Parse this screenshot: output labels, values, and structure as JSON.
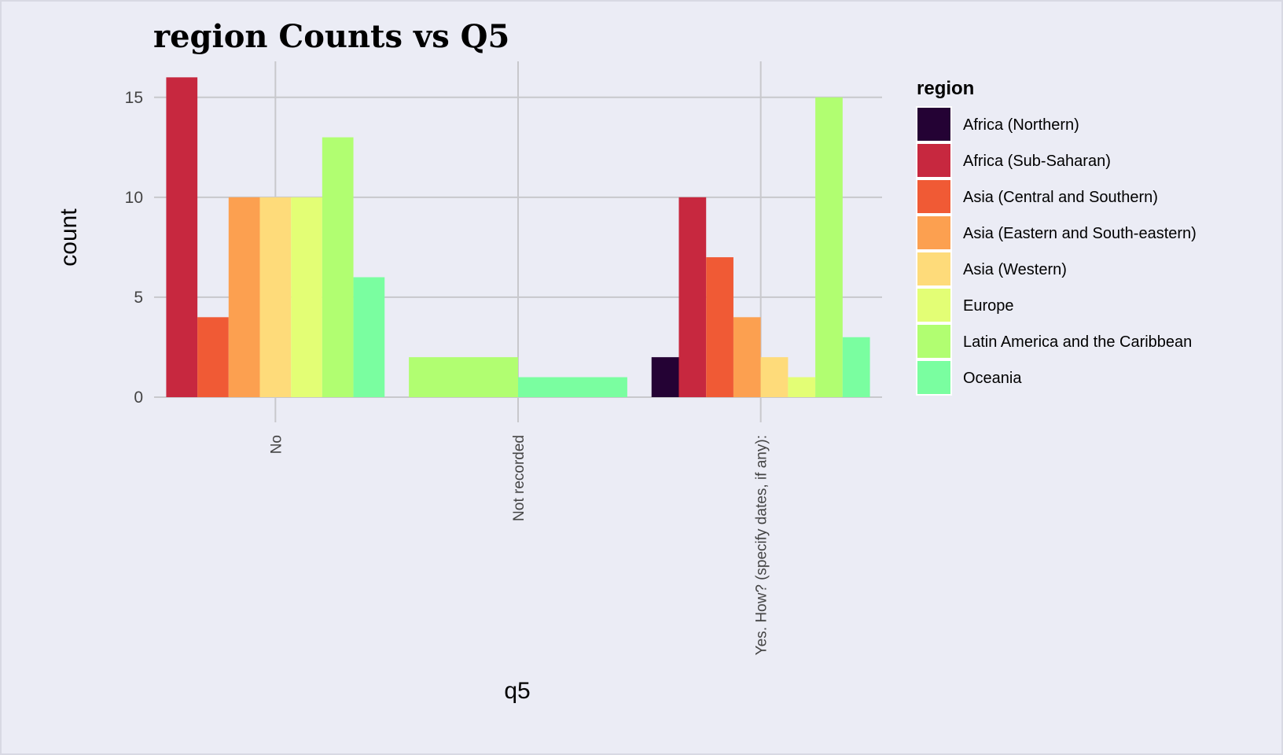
{
  "chart_data": {
    "type": "bar",
    "title": "region Counts vs Q5",
    "xlabel": "q5",
    "ylabel": "count",
    "ylim": [
      0,
      16.8
    ],
    "yticks": [
      0,
      5,
      10,
      15
    ],
    "grid": true,
    "legend": {
      "title": "region",
      "placement": "right"
    },
    "categories": [
      "No",
      "Not recorded",
      "Yes. How? (specify dates, if any):"
    ],
    "series": [
      {
        "name": "Africa (Northern)",
        "color": "#240234",
        "values": [
          null,
          null,
          2
        ]
      },
      {
        "name": "Africa (Sub-Saharan)",
        "color": "#C7283F",
        "values": [
          16,
          null,
          10
        ]
      },
      {
        "name": "Asia (Central and Southern)",
        "color": "#F05A35",
        "values": [
          4,
          null,
          7
        ]
      },
      {
        "name": "Asia (Eastern and South-eastern)",
        "color": "#FCA050",
        "values": [
          10,
          null,
          4
        ]
      },
      {
        "name": "Asia (Western)",
        "color": "#FEDB7A",
        "values": [
          10,
          null,
          2
        ]
      },
      {
        "name": "Europe",
        "color": "#E3FE75",
        "values": [
          10,
          null,
          1
        ]
      },
      {
        "name": "Latin America and the Caribbean",
        "color": "#B1FE71",
        "values": [
          13,
          2,
          15
        ]
      },
      {
        "name": "Oceania",
        "color": "#7AFEA0",
        "values": [
          6,
          1,
          3
        ]
      }
    ]
  }
}
